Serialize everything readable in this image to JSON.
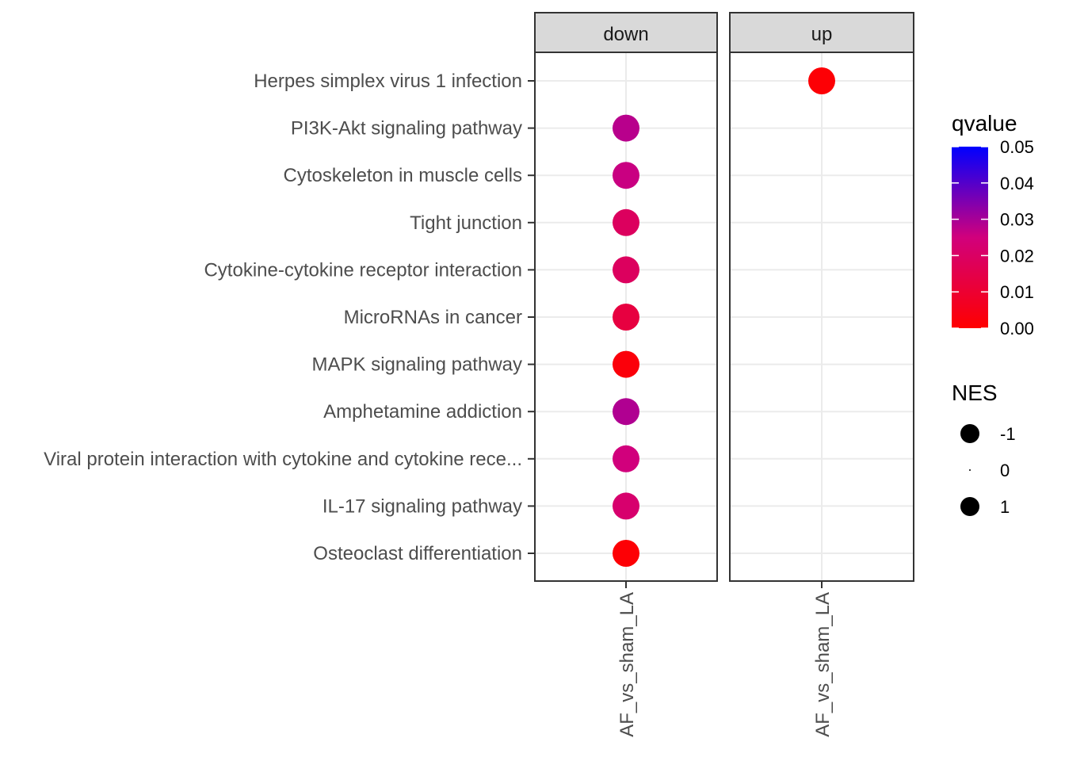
{
  "chart_data": {
    "type": "scatter",
    "facets": [
      "down",
      "up"
    ],
    "x_categories": [
      "AF_vs_sham_LA"
    ],
    "y_categories": [
      "Herpes simplex virus 1 infection",
      "PI3K-Akt signaling pathway",
      "Cytoskeleton in muscle cells",
      "Tight junction",
      "Cytokine-cytokine receptor interaction",
      "MicroRNAs in cancer",
      "MAPK signaling pathway",
      "Amphetamine addiction",
      "Viral protein interaction with cytokine and cytokine rece...",
      "IL-17 signaling pathway",
      "Osteoclast differentiation"
    ],
    "points": [
      {
        "facet": "up",
        "x": "AF_vs_sham_LA",
        "y": "Herpes simplex virus 1 infection",
        "qvalue": 0.001,
        "NES": 1
      },
      {
        "facet": "down",
        "x": "AF_vs_sham_LA",
        "y": "PI3K-Akt signaling pathway",
        "qvalue": 0.028,
        "NES": -1
      },
      {
        "facet": "down",
        "x": "AF_vs_sham_LA",
        "y": "Cytoskeleton in muscle cells",
        "qvalue": 0.026,
        "NES": -1
      },
      {
        "facet": "down",
        "x": "AF_vs_sham_LA",
        "y": "Tight junction",
        "qvalue": 0.019,
        "NES": -1
      },
      {
        "facet": "down",
        "x": "AF_vs_sham_LA",
        "y": "Cytokine-cytokine receptor interaction",
        "qvalue": 0.019,
        "NES": -1
      },
      {
        "facet": "down",
        "x": "AF_vs_sham_LA",
        "y": "MicroRNAs in cancer",
        "qvalue": 0.013,
        "NES": -1
      },
      {
        "facet": "down",
        "x": "AF_vs_sham_LA",
        "y": "MAPK signaling pathway",
        "qvalue": 0.002,
        "NES": -1
      },
      {
        "facet": "down",
        "x": "AF_vs_sham_LA",
        "y": "Amphetamine addiction",
        "qvalue": 0.029,
        "NES": -1
      },
      {
        "facet": "down",
        "x": "AF_vs_sham_LA",
        "y": "Viral protein interaction with cytokine and cytokine rece...",
        "qvalue": 0.025,
        "NES": -1
      },
      {
        "facet": "down",
        "x": "AF_vs_sham_LA",
        "y": "IL-17 signaling pathway",
        "qvalue": 0.022,
        "NES": -1
      },
      {
        "facet": "down",
        "x": "AF_vs_sham_LA",
        "y": "Osteoclast differentiation",
        "qvalue": 0.001,
        "NES": -1
      }
    ],
    "color_legend": {
      "title": "qvalue",
      "breaks": [
        "0.05",
        "0.04",
        "0.03",
        "0.02",
        "0.01",
        "0.00"
      ],
      "range": [
        0,
        0.05
      ],
      "low_color": "#ff0000",
      "high_color": "#0000ff"
    },
    "size_legend": {
      "title": "NES",
      "breaks": [
        "-1",
        "0",
        "1"
      ]
    },
    "grid": true,
    "legend_position": "right"
  }
}
